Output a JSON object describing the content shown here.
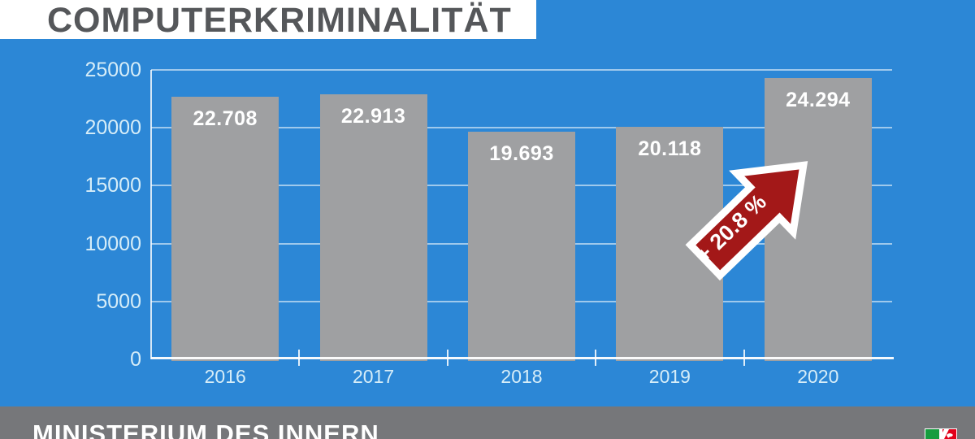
{
  "title": {
    "text": "COMPUTERKRIMINALITÄT"
  },
  "footer": {
    "text": "MINISTERIUM DES INNERN"
  },
  "annotation": {
    "text": "+ 20.8 %"
  },
  "colors": {
    "background": "#2c87d6",
    "banner": "#ffffff",
    "title_text": "#55575a",
    "bar": "#9fa0a2",
    "bar_value_text": "#ffffff",
    "axis_label": "#d6edf8",
    "footer_bg": "#76777a",
    "footer_text": "#ffffff",
    "arrow_red": "#a31818",
    "arrow_outline": "#ffffff",
    "logo_green": "#169c3e",
    "logo_red": "#e2001a"
  },
  "chart_data": {
    "type": "bar",
    "title": "COMPUTERKRIMINALITÄT",
    "categories": [
      "2016",
      "2017",
      "2018",
      "2019",
      "2020"
    ],
    "values": [
      22708,
      22913,
      19693,
      20118,
      24294
    ],
    "value_labels": [
      "22.708",
      "22.913",
      "19.693",
      "20.118",
      "24.294"
    ],
    "y_ticks": [
      0,
      5000,
      10000,
      15000,
      20000,
      25000
    ],
    "y_tick_labels": [
      "0",
      "5000",
      "10000",
      "15000",
      "20000",
      "25000"
    ],
    "ylim": [
      0,
      25000
    ],
    "xlabel": "",
    "ylabel": "",
    "grid": true,
    "legend": null,
    "annotation": {
      "label": "+ 20.8 %",
      "type": "up-right-arrow",
      "position": "between 2019 and 2020 bars"
    }
  }
}
